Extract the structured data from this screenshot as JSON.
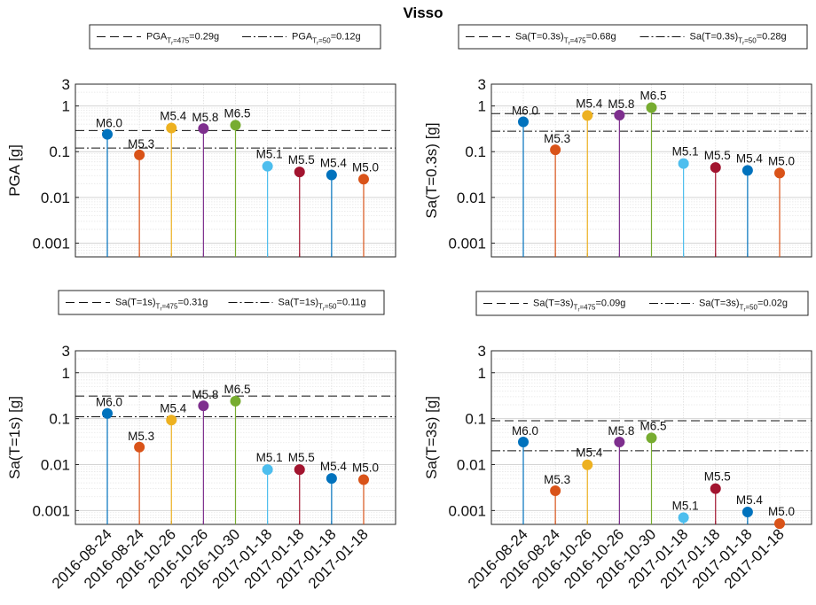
{
  "figure": {
    "title": "Visso"
  },
  "colors": [
    "#0072BD",
    "#D95319",
    "#EDB120",
    "#7E2F8E",
    "#77AC30",
    "#4DBEEE",
    "#A2142F",
    "#0072BD",
    "#D95319"
  ],
  "chart_data": [
    {
      "type": "stem",
      "scale": "log",
      "ylabel": "PGA [g]",
      "ylim": [
        0.0005,
        3
      ],
      "yticks": [
        "0.001",
        "0.01",
        "0.1",
        "1",
        "3"
      ],
      "grid": true,
      "categories": [
        "2016-08-24",
        "2016-08-24",
        "2016-10-26",
        "2016-10-26",
        "2016-10-30",
        "2017-01-18",
        "2017-01-18",
        "2017-01-18",
        "2017-01-18"
      ],
      "magnitudes": [
        "M6.0",
        "M5.3",
        "M5.4",
        "M5.8",
        "M6.5",
        "M5.1",
        "M5.5",
        "M5.4",
        "M5.0"
      ],
      "values": [
        0.24,
        0.085,
        0.33,
        0.32,
        0.38,
        0.048,
        0.036,
        0.031,
        0.025
      ],
      "thresholds": [
        {
          "quantity": "PGA",
          "period": "475",
          "value": 0.29,
          "display": "=0.29g",
          "style": "dashed"
        },
        {
          "quantity": "PGA",
          "period": "50",
          "value": 0.12,
          "display": "=0.12g",
          "style": "dashdot"
        }
      ]
    },
    {
      "type": "stem",
      "scale": "log",
      "ylabel": "Sa(T=0.3s) [g]",
      "ylim": [
        0.0005,
        3
      ],
      "yticks": [
        "0.001",
        "0.01",
        "0.1",
        "1",
        "3"
      ],
      "grid": true,
      "categories": [
        "2016-08-24",
        "2016-08-24",
        "2016-10-26",
        "2016-10-26",
        "2016-10-30",
        "2017-01-18",
        "2017-01-18",
        "2017-01-18",
        "2017-01-18"
      ],
      "magnitudes": [
        "M6.0",
        "M5.3",
        "M5.4",
        "M5.8",
        "M6.5",
        "M5.1",
        "M5.5",
        "M5.4",
        "M5.0"
      ],
      "values": [
        0.45,
        0.11,
        0.62,
        0.63,
        0.92,
        0.055,
        0.045,
        0.039,
        0.034
      ],
      "thresholds": [
        {
          "quantity": "Sa(T=0.3s)",
          "period": "475",
          "value": 0.68,
          "display": "=0.68g",
          "style": "dashed"
        },
        {
          "quantity": "Sa(T=0.3s)",
          "period": "50",
          "value": 0.28,
          "display": "=0.28g",
          "style": "dashdot"
        }
      ]
    },
    {
      "type": "stem",
      "scale": "log",
      "ylabel": "Sa(T=1s) [g]",
      "ylim": [
        0.0005,
        3
      ],
      "yticks": [
        "0.001",
        "0.01",
        "0.1",
        "1",
        "3"
      ],
      "grid": true,
      "categories": [
        "2016-08-24",
        "2016-08-24",
        "2016-10-26",
        "2016-10-26",
        "2016-10-30",
        "2017-01-18",
        "2017-01-18",
        "2017-01-18",
        "2017-01-18"
      ],
      "magnitudes": [
        "M6.0",
        "M5.3",
        "M5.4",
        "M5.8",
        "M6.5",
        "M5.1",
        "M5.5",
        "M5.4",
        "M5.0"
      ],
      "values": [
        0.13,
        0.024,
        0.093,
        0.19,
        0.24,
        0.0078,
        0.0078,
        0.005,
        0.0047
      ],
      "thresholds": [
        {
          "quantity": "Sa(T=1s)",
          "period": "475",
          "value": 0.31,
          "display": "=0.31g",
          "style": "dashed"
        },
        {
          "quantity": "Sa(T=1s)",
          "period": "50",
          "value": 0.11,
          "display": "=0.11g",
          "style": "dashdot"
        }
      ]
    },
    {
      "type": "stem",
      "scale": "log",
      "ylabel": "Sa(T=3s) [g]",
      "ylim": [
        0.0005,
        3
      ],
      "yticks": [
        "0.001",
        "0.01",
        "0.1",
        "1",
        "3"
      ],
      "grid": true,
      "categories": [
        "2016-08-24",
        "2016-08-24",
        "2016-10-26",
        "2016-10-26",
        "2016-10-30",
        "2017-01-18",
        "2017-01-18",
        "2017-01-18",
        "2017-01-18"
      ],
      "magnitudes": [
        "M6.0",
        "M5.3",
        "M5.4",
        "M5.8",
        "M6.5",
        "M5.1",
        "M5.5",
        "M5.4",
        "M5.0"
      ],
      "values": [
        0.031,
        0.0027,
        0.0099,
        0.031,
        0.038,
        0.0007,
        0.003,
        0.00093,
        0.00052
      ],
      "thresholds": [
        {
          "quantity": "Sa(T=3s)",
          "period": "475",
          "value": 0.09,
          "display": "=0.09g",
          "style": "dashed"
        },
        {
          "quantity": "Sa(T=3s)",
          "period": "50",
          "value": 0.02,
          "display": "=0.02g",
          "style": "dashdot"
        }
      ]
    }
  ]
}
